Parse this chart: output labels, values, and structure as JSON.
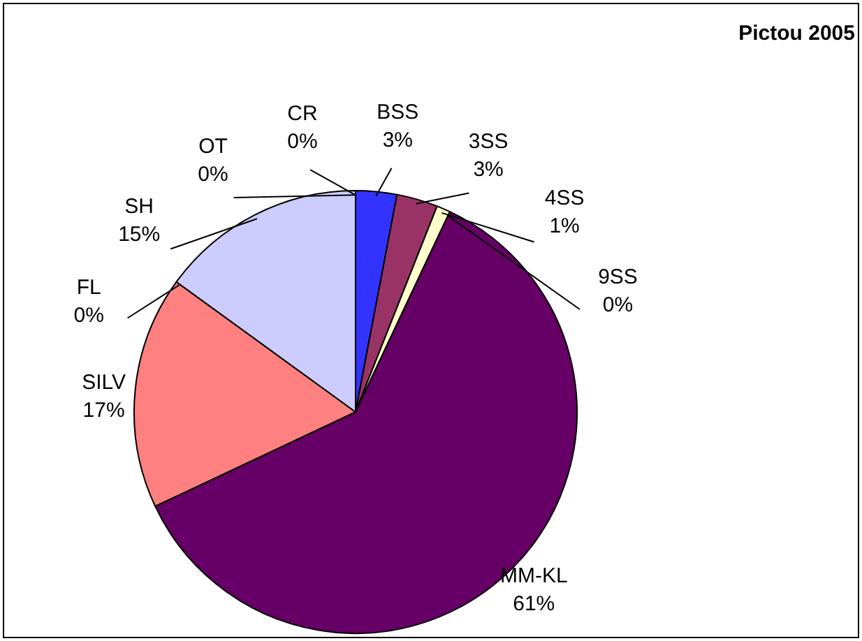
{
  "chart_data": {
    "type": "pie",
    "title": "Pictou 2005",
    "categories": [
      "CR",
      "BSS",
      "3SS",
      "4SS",
      "9SS",
      "MM-KL",
      "SILV",
      "FL",
      "SH",
      "OT"
    ],
    "values": [
      0,
      3,
      3,
      1,
      0,
      61,
      17,
      0,
      15,
      0
    ],
    "colors": [
      "#000080",
      "#3333ff",
      "#993366",
      "#ffffcc",
      "#ccffff",
      "#660066",
      "#ff8080",
      "#0066cc",
      "#ccccff",
      "#000080"
    ],
    "value_labels": [
      "0%",
      "3%",
      "3%",
      "1%",
      "0%",
      "61%",
      "17%",
      "0%",
      "15%",
      "0%"
    ]
  }
}
